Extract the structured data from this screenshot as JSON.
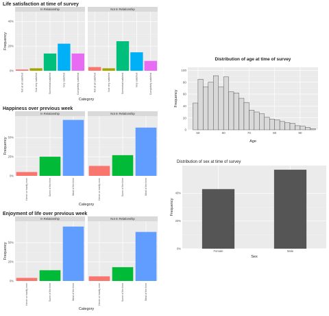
{
  "chart_data": [
    {
      "type": "bar",
      "title": "Life satisfaction at time of survey",
      "xlabel": "Category",
      "ylabel": "Frequency",
      "facets": [
        "In Relationship",
        "Not In Relationship"
      ],
      "categories": [
        "Not at all satisfied",
        "Not very satisfied",
        "Somewhat satisfied",
        "Very satisfied",
        "Completely satisfied"
      ],
      "colors": [
        "#F8766D",
        "#A3A500",
        "#00BF7D",
        "#00B0F6",
        "#E76BF3"
      ],
      "yticks": [
        0,
        20,
        40
      ],
      "ytick_labels": [
        "0%",
        "20%",
        "40%"
      ],
      "ylim": [
        0,
        48
      ],
      "series": [
        {
          "name": "In Relationship",
          "values": [
            1,
            2,
            14,
            22,
            14
          ]
        },
        {
          "name": "Not In Relationship",
          "values": [
            3,
            2,
            24,
            15,
            8
          ]
        }
      ],
      "grid": true
    },
    {
      "type": "bar",
      "title": "Happiness over previous week",
      "xlabel": "Category",
      "ylabel": "Frequency",
      "facets": [
        "In Relationship",
        "Not In Relationship"
      ],
      "categories": [
        "Never or hardly ever",
        "Some of the time",
        "Most of the time"
      ],
      "colors": [
        "#F8766D",
        "#00BA38",
        "#619CFF"
      ],
      "yticks": [
        0,
        25,
        50
      ],
      "ytick_labels": [
        "0%",
        "25%",
        "50%"
      ],
      "ylim": [
        0,
        78
      ],
      "series": [
        {
          "name": "In Relationship",
          "values": [
            5,
            25,
            73
          ]
        },
        {
          "name": "Not In Relationship",
          "values": [
            13,
            27,
            63
          ]
        }
      ],
      "grid": true
    },
    {
      "type": "bar",
      "title": "Enjoyment of life over previous week",
      "xlabel": "Category",
      "ylabel": "Frequency",
      "facets": [
        "In Relationship",
        "Not In Relationship"
      ],
      "categories": [
        "Never or hardly ever",
        "Some of the time",
        "Most of the time"
      ],
      "colors": [
        "#F8766D",
        "#00BA38",
        "#619CFF"
      ],
      "yticks": [
        0,
        25,
        50
      ],
      "ytick_labels": [
        "0%",
        "25%",
        "50%"
      ],
      "ylim": [
        0,
        78
      ],
      "series": [
        {
          "name": "In Relationship",
          "values": [
            4,
            14,
            71
          ]
        },
        {
          "name": "Not In Relationship",
          "values": [
            6,
            18,
            64
          ]
        }
      ],
      "grid": true
    },
    {
      "type": "bar",
      "subtype": "histogram",
      "title": "Distribution of age at time of survey",
      "xlabel": "Age",
      "ylabel": "Frequency",
      "bin_start": 48,
      "bin_width": 2,
      "values": [
        45,
        85,
        72,
        80,
        91,
        72,
        89,
        64,
        62,
        53,
        46,
        33,
        30,
        27,
        21,
        18,
        17,
        14,
        12,
        11,
        7,
        6,
        4,
        2
      ],
      "xticks": [
        50,
        60,
        70,
        80,
        90
      ],
      "yticks": [
        0,
        20,
        40,
        60,
        80,
        100
      ],
      "xlim": [
        46,
        97
      ],
      "ylim": [
        0,
        105
      ],
      "fill": "#d9d9d9",
      "grid": true
    },
    {
      "type": "bar",
      "title": "Distribution of sex at time of survey",
      "xlabel": "Sex",
      "ylabel": "Frequency",
      "categories": [
        "Female",
        "Male"
      ],
      "values": [
        43,
        57
      ],
      "yticks": [
        0,
        20,
        40
      ],
      "ytick_labels": [
        "0%",
        "20%",
        "40%"
      ],
      "ylim": [
        0,
        60
      ],
      "fill": "#555555",
      "grid": true
    }
  ]
}
